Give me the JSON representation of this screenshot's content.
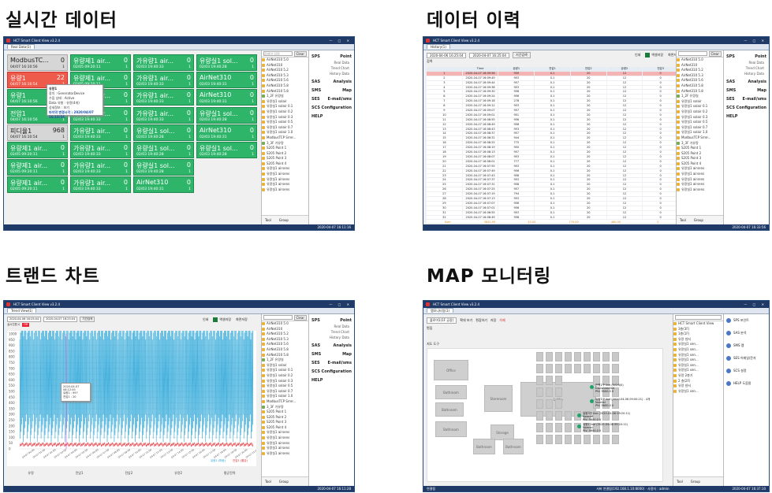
{
  "captions": [
    "실시간 데이터",
    "데이터 이력",
    "트랜드 차트",
    "MAP 모니터링"
  ],
  "app": {
    "title": "HCT Smart Client View v3.2.4",
    "window_controls": "— □ ✕"
  },
  "status": {
    "rt": "2020-04-07 16:11:16",
    "hist": "2020-04-07 16:33:56",
    "trend": "2020-04-07 16:11:28",
    "map": "2020-04-07 16:37:10"
  },
  "menu": {
    "items": [
      {
        "label": "SPS",
        "sub": "Point"
      },
      {
        "label": "SAS",
        "sub": "Analysis"
      },
      {
        "label": "SMS",
        "sub": "Map"
      },
      {
        "label": "SES",
        "sub": "E-mail/sms"
      },
      {
        "label": "SCS",
        "sub": "Configuration"
      },
      {
        "label": "HELP",
        "sub": ""
      }
    ],
    "point_subs": [
      "Real Data",
      "Trend Chart",
      "History Data"
    ]
  },
  "realtime": {
    "tab": "Real Data(1)",
    "search_btn": "Clear",
    "search_placeholder": "검색어 입력",
    "tiles": [
      {
        "name": "ModbusTC...",
        "value": "0",
        "date": "04/07 16:10:56",
        "count": "1",
        "kind": "gray"
      },
      {
        "name": "유량1",
        "value": "22",
        "date": "04/07 16:10:54",
        "count": "1",
        "kind": "red"
      },
      {
        "name": "유량1",
        "value": "0",
        "date": "04/07 16:10:56",
        "count": "1",
        "kind": "green"
      },
      {
        "name": "전압1",
        "value": "0",
        "date": "04/07 16:10:56",
        "count": "1",
        "kind": "green"
      },
      {
        "name": "피디율1",
        "value": "968",
        "date": "04/07 16:10:54",
        "count": "1",
        "kind": "gray"
      },
      {
        "name": "유량제1 air...",
        "value": "0",
        "date": "02/05 09:20:11",
        "count": "1",
        "kind": "green"
      },
      {
        "name": "유량제1 air...",
        "value": "0",
        "date": "02/05 09:20:11",
        "count": "1",
        "kind": "green"
      },
      {
        "name": "유량제1 air...",
        "value": "0",
        "date": "02/05 09:20:11",
        "count": "1",
        "kind": "green"
      },
      {
        "name": "유량제1 air...",
        "value": "0",
        "date": "02/05 09:20:11",
        "count": "1",
        "kind": "green"
      },
      {
        "name": "유량제1 air...",
        "value": "0",
        "date": "02/05 09:20:11",
        "count": "1",
        "kind": "green"
      },
      {
        "name": "가유량1 air...",
        "value": "0",
        "date": "02/05 09:20:11",
        "count": "1",
        "kind": "green"
      },
      {
        "name": "가유량1 air...",
        "value": "0",
        "date": "02/03 19:40:33",
        "count": "1",
        "kind": "green"
      },
      {
        "name": "가유량1 air...",
        "value": "0",
        "date": "02/03 19:40:33",
        "count": "1",
        "kind": "green"
      },
      {
        "name": "가유량1 air...",
        "value": "0",
        "date": "02/03 19:40:33",
        "count": "1",
        "kind": "green"
      },
      {
        "name": "가유량1 air...",
        "value": "0",
        "date": "02/03 19:40:33",
        "count": "1",
        "kind": "green"
      },
      {
        "name": "가유량1 air...",
        "value": "0",
        "date": "02/03 19:40:33",
        "count": "1",
        "kind": "green"
      },
      {
        "name": "가유량1 air...",
        "value": "0",
        "date": "02/03 19:40:33",
        "count": "1",
        "kind": "green"
      },
      {
        "name": "가유량1 air...",
        "value": "0",
        "date": "02/03 19:40:33",
        "count": "1",
        "kind": "green"
      },
      {
        "name": "가유량1 air...",
        "value": "0",
        "date": "02/03 19:40:33",
        "count": "1",
        "kind": "green"
      },
      {
        "name": "가유량1 air...",
        "value": "0",
        "date": "02/03 19:40:33",
        "count": "1",
        "kind": "green"
      },
      {
        "name": "유량실1 sol...",
        "value": "0",
        "date": "02/03 19:40:28",
        "count": "1",
        "kind": "green"
      },
      {
        "name": "유량실1 sol...",
        "value": "0",
        "date": "02/03 19:40:28",
        "count": "1",
        "kind": "green"
      },
      {
        "name": "유량실1 sol...",
        "value": "0",
        "date": "02/03 19:40:28",
        "count": "1",
        "kind": "green"
      },
      {
        "name": "AirNet310",
        "value": "0",
        "date": "02/03 19:40:31",
        "count": "1",
        "kind": "green"
      },
      {
        "name": "유량실1 sol...",
        "value": "0",
        "date": "02/03 19:40:28",
        "count": "1",
        "kind": "green"
      },
      {
        "name": "AirNet310",
        "value": "0",
        "date": "02/03 19:40:31",
        "count": "1",
        "kind": "green"
      },
      {
        "name": "AirNet310",
        "value": "0",
        "date": "02/03 19:40:31",
        "count": "1",
        "kind": "green"
      },
      {
        "name": "유량실1 sol...",
        "value": "0",
        "date": "02/03 19:40:28",
        "count": "1",
        "kind": "green"
      },
      {
        "name": "AirNet310",
        "value": "0",
        "date": "02/03 19:40:31",
        "count": "1",
        "kind": "green"
      },
      {
        "name": "유량실1 sol...",
        "value": "0",
        "date": "02/03 19:40:28",
        "count": "1",
        "kind": "green"
      },
      {
        "name": "AirNet310",
        "value": "0",
        "date": "02/03 19:40:31",
        "count": "1",
        "kind": "green"
      },
      {
        "name": "유량실1 solair",
        "value": "0",
        "date": "02/03 19:40:28",
        "count": "1",
        "kind": "green"
      }
    ],
    "tooltip": {
      "title": "유량1",
      "lines": [
        "장치 : GeneratorDevice",
        "수집 상태 : Active",
        "Data 유형 : 유량(4개)",
        "상세정보 : 보기"
      ],
      "last": "마지막 변경시각 : 2020/04/07 16:10:54"
    },
    "tree": [
      "AirNet310 5.0",
      "AirNet310",
      "AirNet310 5.2",
      "AirNet310 5.3",
      "AirNet310 5.6",
      "AirNet310 5.8",
      "AirNet310 5.8",
      "1_2F 유량실",
      "유량실1 solair",
      "유량실1 solair 0.1",
      "유량실1 solair 0.2",
      "유량실1 solair 0.3",
      "유량실1 solair 0.5",
      "유량실1 solair 0.7",
      "유량실1 solair 1.0",
      "ModbusTCP Srrer...",
      "3_3F 가유량",
      "S205 Point 1",
      "S205 Point 2",
      "S205 Point 3",
      "S205 Point 4",
      "유량실1 airsens",
      "유량실1 airsens",
      "유량실1 airsens",
      "유량실1 airsens",
      "유량실1 airsens"
    ],
    "tree_footer": [
      "Tool",
      "Group"
    ]
  },
  "history": {
    "tab": "History(1)",
    "from": "2020-04-06 16:25:04",
    "to": "2020-04-07 16:25:04",
    "btn": "기간검색",
    "search_label": "검색",
    "cols": [
      "Time",
      "유량1",
      "전압1",
      "전압2",
      "유량2",
      "전압3"
    ],
    "rows": [
      [
        "2020-04-07 16:09:56",
        "959",
        "0.1",
        "20",
        "12",
        "0"
      ],
      [
        "2020-04-07 16:09:49",
        "953",
        "0.1",
        "20",
        "12",
        "0"
      ],
      [
        "2020-04-07 16:09:44",
        "957",
        "0.1",
        "20",
        "12",
        "0"
      ],
      [
        "2020-04-07 16:09:38",
        "953",
        "0.1",
        "20",
        "12",
        "0"
      ],
      [
        "2020-04-07 16:09:30",
        "958",
        "0.1",
        "20",
        "12",
        "0"
      ],
      [
        "2020-04-07 16:09:24",
        "956",
        "0.1",
        "20",
        "12",
        "0"
      ],
      [
        "2020-04-07 16:09:18",
        "278",
        "0.1",
        "20",
        "12",
        "0"
      ],
      [
        "2020-04-07 16:09:12",
        "953",
        "0.1",
        "20",
        "12",
        "0"
      ],
      [
        "2020-04-07 16:09:07",
        "957",
        "0.1",
        "20",
        "12",
        "0"
      ],
      [
        "2020-04-07 16:09:01",
        "951",
        "0.1",
        "20",
        "12",
        "0"
      ],
      [
        "2020-04-07 16:08:55",
        "956",
        "0.1",
        "20",
        "12",
        "0"
      ],
      [
        "2020-04-07 16:08:49",
        "958",
        "0.1",
        "20",
        "12",
        "0"
      ],
      [
        "2020-04-07 16:08:43",
        "953",
        "0.1",
        "20",
        "12",
        "0"
      ],
      [
        "2020-04-07 16:08:37",
        "957",
        "0.1",
        "20",
        "12",
        "0"
      ],
      [
        "2020-04-07 16:08:31",
        "944",
        "0.1",
        "20",
        "12",
        "0"
      ],
      [
        "2020-04-07 16:08:25",
        "775",
        "0.1",
        "20",
        "12",
        "0"
      ],
      [
        "2020-04-07 16:08:19",
        "950",
        "0.1",
        "20",
        "12",
        "0"
      ],
      [
        "2020-04-07 16:08:13",
        "957",
        "0.1",
        "20",
        "12",
        "0"
      ],
      [
        "2020-04-07 16:08:07",
        "953",
        "0.1",
        "20",
        "12",
        "0"
      ],
      [
        "2020-04-07 16:08:01",
        "777",
        "0.1",
        "20",
        "12",
        "0"
      ],
      [
        "2020-04-07 16:07:55",
        "953",
        "0.1",
        "20",
        "12",
        "0"
      ],
      [
        "2020-04-07 16:07:49",
        "956",
        "0.1",
        "20",
        "12",
        "0"
      ],
      [
        "2020-04-07 16:07:43",
        "958",
        "0.1",
        "20",
        "12",
        "0"
      ],
      [
        "2020-04-07 16:07:37",
        "953",
        "0.1",
        "20",
        "12",
        "0"
      ],
      [
        "2020-04-07 16:07:31",
        "958",
        "0.1",
        "20",
        "12",
        "0"
      ],
      [
        "2020-04-07 16:07:25",
        "957",
        "0.1",
        "20",
        "12",
        "0"
      ],
      [
        "2020-04-07 16:07:19",
        "794",
        "0.1",
        "20",
        "12",
        "0"
      ],
      [
        "2020-04-07 16:07:13",
        "953",
        "0.1",
        "20",
        "12",
        "0"
      ],
      [
        "2020-04-07 16:07:07",
        "958",
        "0.1",
        "20",
        "12",
        "0"
      ],
      [
        "2020-04-07 16:07:01",
        "956",
        "0.1",
        "20",
        "12",
        "0"
      ],
      [
        "2020-04-07 16:06:55",
        "953",
        "0.1",
        "20",
        "12",
        "0"
      ],
      [
        "2020-04-07 16:06:49",
        "958",
        "0.1",
        "20",
        "12",
        "0"
      ]
    ],
    "summary": [
      [
        "Sum",
        "3620.95",
        "43.00",
        "770.00",
        "460.00",
        "0"
      ],
      [
        "Avg",
        "876.11",
        "0.10",
        "20.00",
        "12.00",
        "0"
      ],
      [
        "Max",
        "999",
        "0.1",
        "20",
        "12",
        "0"
      ],
      [
        "Min",
        "275",
        "0.1",
        "20",
        "12",
        "0"
      ]
    ],
    "buttons": [
      "인쇄",
      "엑셀저장",
      "화면저장"
    ]
  },
  "trend": {
    "tab": "Trend View(1)",
    "from": "2020-04-06 16:25:04",
    "to": "2020-04-07 16:25:04",
    "btn": "기간검색",
    "realtime_label": "실시간표시",
    "off": "Off",
    "legend": [
      "유량1 (파랑)",
      "전압1 (빨강)"
    ],
    "tip": [
      "2020-04-07 08:12:45",
      "유량1 : 957",
      "전압1 : 20"
    ],
    "y_ticks": [
      "1000",
      "950",
      "900",
      "850",
      "800",
      "750",
      "700",
      "650",
      "600",
      "550",
      "500",
      "450",
      "400",
      "350",
      "300",
      "250",
      "200",
      "150",
      "100",
      "50",
      "0"
    ],
    "footer": [
      "유량",
      "전압1",
      "전압2",
      "유량2",
      "평균전력"
    ]
  },
  "map": {
    "tab": "맵모니터링(1)",
    "zone": "플로어1(1F 공장)",
    "toolbar": [
      "확대 보기",
      "편집하기",
      "저장",
      "삭제"
    ],
    "edit_label": "편집",
    "tools_label": "지도 도구",
    "rooms": [
      "Office",
      "Bathroom",
      "Bathroom",
      "Bathroom",
      "Storeroom",
      "Storage",
      "Lobby",
      "Bathroom",
      "Bathroom"
    ],
    "pins": [
      {
        "label": "전원1구 line (5/0/0/0)",
        "sub": "Disconnected",
        "tag": "PIV: 5000.0 V"
      },
      {
        "label": "유량1구 line (2020-04-06 09:00:21) - 4개",
        "sub": "Normal",
        "tag": "PIV: 5600.0 V"
      },
      {
        "label": "유량3구 line (2020-04-06 09:20:11)",
        "sub": "Normal",
        "tag": "PIV: 5600.0 V"
      },
      {
        "label": "유량1 line (2020-04-06 09:20:12)",
        "sub": "Normal",
        "tag": "PIV: 5600.0 V"
      }
    ],
    "tree": [
      "HCT Smart Client View",
      "3층(3F)",
      "1층(1F)",
      "유량 센서",
      "유량실1 sen...",
      "유량실1 sen...",
      "유량실1 sen...",
      "유량실1 sen...",
      "유량실1 sen...",
      "유량실1 sen...",
      "유량 2층기",
      "2 층(2F)",
      "유량 센서",
      "유량실1 sen..."
    ],
    "side": [
      "SPS 포인트",
      "SAS 분석",
      "SMS 맵",
      "SES 이메일/문자",
      "SCS 설정",
      "HELP 도움말"
    ],
    "status_left": "연결됨",
    "status_mid": "서버 연결됨(192.168.1.10:8000) · 사용자 : admin"
  }
}
